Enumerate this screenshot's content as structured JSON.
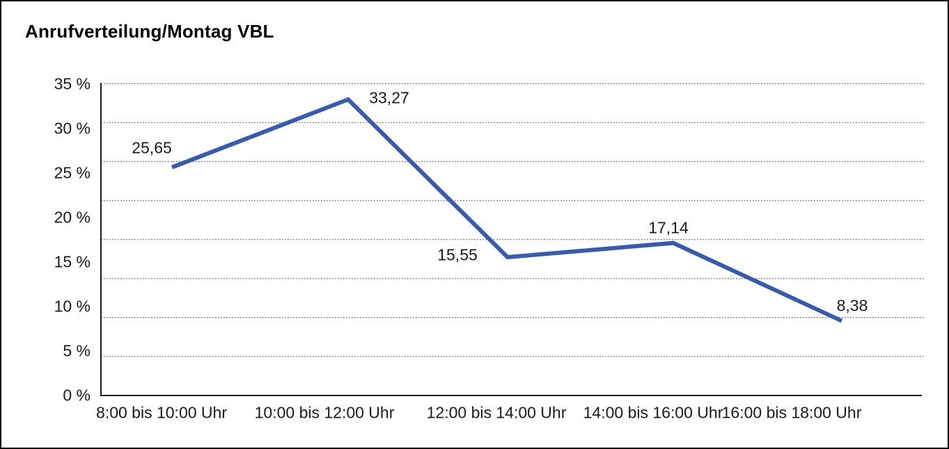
{
  "chart_data": {
    "type": "line",
    "title": "Anrufverteilung/Montag VBL",
    "categories": [
      "8:00 bis 10:00 Uhr",
      "10:00 bis 12:00 Uhr",
      "12:00 bis 14:00 Uhr",
      "14:00 bis 16:00 Uhr",
      "16:00 bis 18:00 Uhr"
    ],
    "series": [
      {
        "name": "Anrufverteilung Montag VBL",
        "values": [
          25.65,
          33.27,
          15.55,
          17.14,
          8.38
        ],
        "value_labels": [
          "25,65",
          "33,27",
          "15,55",
          "17,14",
          "8,38"
        ]
      }
    ],
    "xlabel": "",
    "ylabel": "",
    "y_tick_labels": [
      "35 %",
      "30 %",
      "25 %",
      "20 %",
      "15 %",
      "10 %",
      "5 %",
      "0 %"
    ],
    "ylim": [
      0,
      35
    ],
    "grid": "horizontal-dotted",
    "legend_position": "none",
    "colors": {
      "line": "#3A5BA8",
      "axis": "#1a1a1a",
      "gridline": "#555555",
      "text": "#1a1a1a",
      "background": "#ffffff",
      "frame_border": "#000000"
    }
  }
}
